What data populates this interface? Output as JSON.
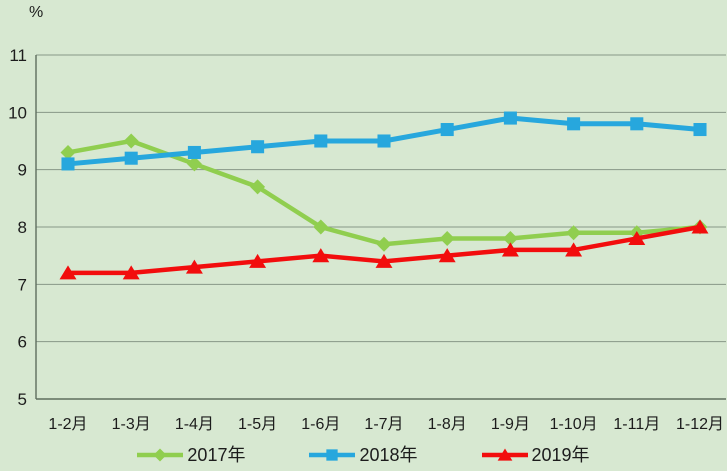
{
  "unit_label": "%",
  "chart_data": {
    "type": "line",
    "title": "",
    "categories": [
      "1-2月",
      "1-3月",
      "1-4月",
      "1-5月",
      "1-6月",
      "1-7月",
      "1-8月",
      "1-9月",
      "1-10月",
      "1-11月",
      "1-12月"
    ],
    "series": [
      {
        "name": "2017年",
        "color": "#90CE4F",
        "marker": "diamond",
        "values": [
          9.3,
          9.5,
          9.1,
          8.7,
          8.0,
          7.7,
          7.8,
          7.8,
          7.9,
          7.9,
          8.0
        ]
      },
      {
        "name": "2018年",
        "color": "#27A7DD",
        "marker": "square",
        "values": [
          9.1,
          9.2,
          9.3,
          9.4,
          9.5,
          9.5,
          9.7,
          9.9,
          9.8,
          9.8,
          9.7
        ]
      },
      {
        "name": "2019年",
        "color": "#F20D0D",
        "marker": "triangle",
        "values": [
          7.2,
          7.2,
          7.3,
          7.4,
          7.5,
          7.4,
          7.5,
          7.6,
          7.6,
          7.8,
          8.0
        ]
      }
    ],
    "xlabel": "",
    "ylabel": "%",
    "ylim": [
      5,
      11
    ],
    "yticks": [
      5,
      6,
      7,
      8,
      9,
      10,
      11
    ],
    "grid": true,
    "legend_position": "bottom"
  },
  "colors": {
    "background": "#D7E8D1",
    "gridline": "#879787",
    "axis": "#5E6E5E",
    "text": "#1C1C1C"
  }
}
